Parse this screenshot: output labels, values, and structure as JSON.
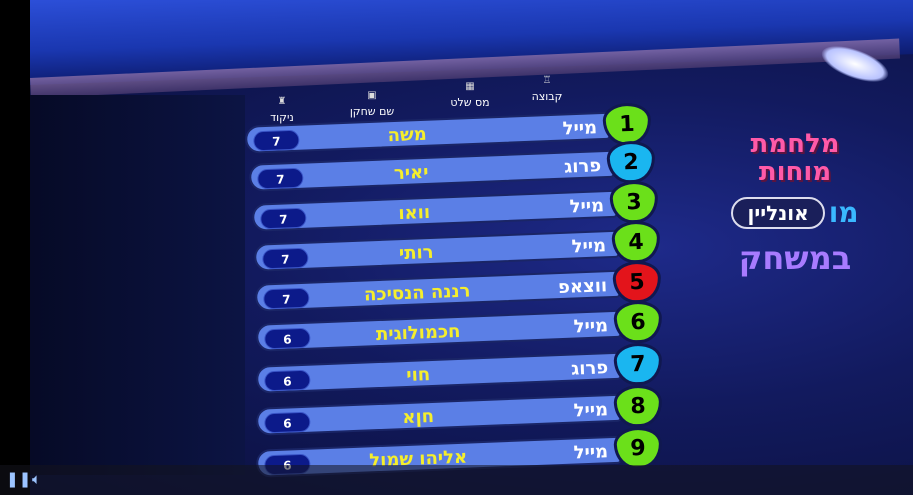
{
  "headers": {
    "score": "ניקוד",
    "player": "שם שחקן",
    "remote": "מס שלט",
    "group": "קבוצה"
  },
  "rows": [
    {
      "rank": "1",
      "group": "מייל",
      "name": "משה",
      "score": "7",
      "color": "#6be01a"
    },
    {
      "rank": "2",
      "group": "פרוג",
      "name": "יאיר",
      "score": "7",
      "color": "#1ab6f0"
    },
    {
      "rank": "3",
      "group": "מייל",
      "name": "וואו",
      "score": "7",
      "color": "#6be01a"
    },
    {
      "rank": "4",
      "group": "מייל",
      "name": "רותי",
      "score": "7",
      "color": "#6be01a"
    },
    {
      "rank": "5",
      "group": "ווצאפ",
      "name": "רננה הנסיכה",
      "score": "7",
      "color": "#e3141b"
    },
    {
      "rank": "6",
      "group": "מייל",
      "name": "חכמולוגית",
      "score": "6",
      "color": "#6be01a"
    },
    {
      "rank": "7",
      "group": "פרוג",
      "name": "חוי",
      "score": "6",
      "color": "#1ab6f0"
    },
    {
      "rank": "8",
      "group": "מייל",
      "name": "חןא",
      "score": "6",
      "color": "#6be01a"
    },
    {
      "rank": "9",
      "group": "מייל",
      "name": "אליהו שמול",
      "score": "6",
      "color": "#6be01a"
    }
  ],
  "logo": {
    "title1": "מלחמת",
    "title2": "מוחות",
    "mo": "מו",
    "online": "אונליין",
    "ingame": "במשחק"
  },
  "controls": {
    "pause_icon": "pause-icon",
    "volume_icon": "volume-icon"
  }
}
